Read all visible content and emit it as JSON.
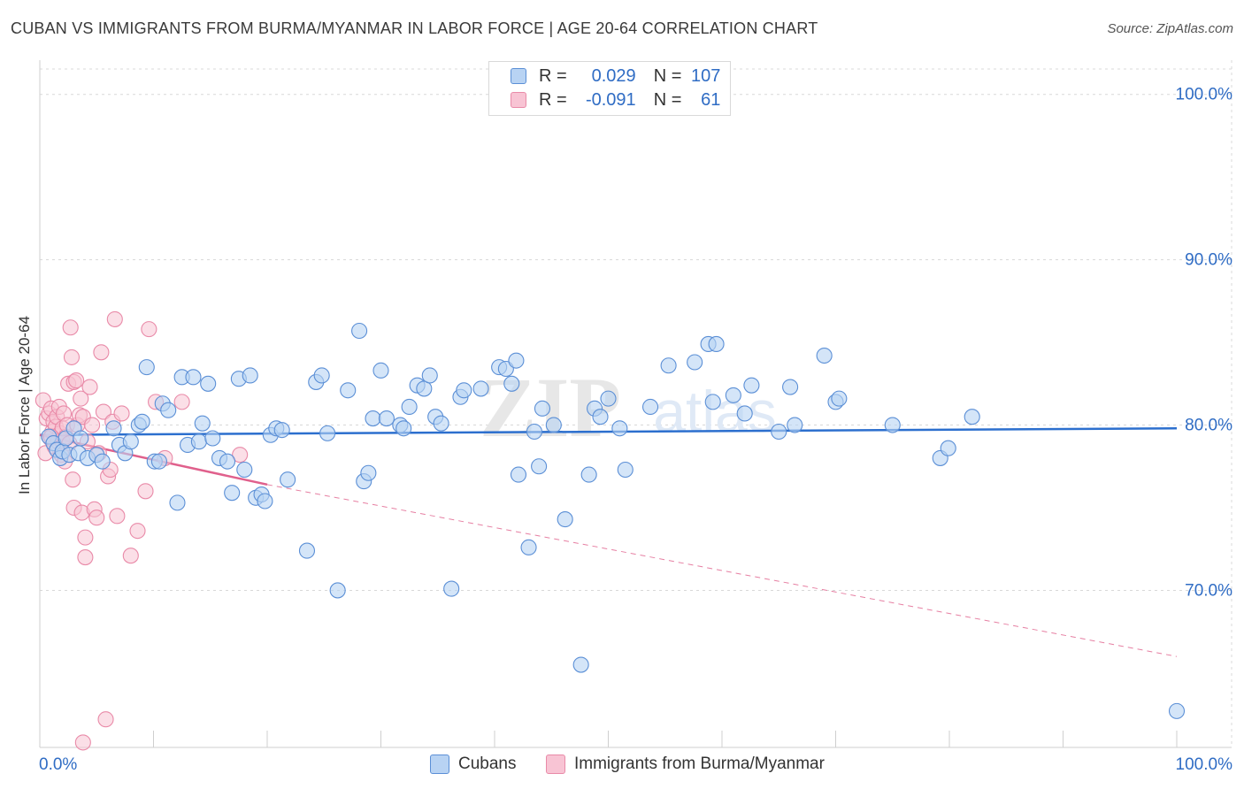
{
  "title": "CUBAN VS IMMIGRANTS FROM BURMA/MYANMAR IN LABOR FORCE | AGE 20-64 CORRELATION CHART",
  "source": "Source: ZipAtlas.com",
  "watermark": {
    "zip": "ZIP",
    "atlas": "atlas"
  },
  "colors": {
    "cubans_fill": "#b8d3f3",
    "cubans_stroke": "#5b8fd6",
    "cubans_line": "#2c6fce",
    "burma_fill": "#f8c4d4",
    "burma_stroke": "#e98aa8",
    "burma_line": "#e0608c",
    "tick_label": "#2f6cc4",
    "grid": "#d8d8d8"
  },
  "legend": {
    "rows": [
      {
        "r_label": "R =",
        "r_value": "0.029",
        "n_label": "N =",
        "n_value": "107"
      },
      {
        "r_label": "R =",
        "r_value": "-0.091",
        "n_label": "N =",
        "n_value": "61"
      }
    ]
  },
  "bottom_legend": {
    "cubans": "Cubans",
    "burma": "Immigrants from Burma/Myanmar"
  },
  "chart_data": {
    "type": "scatter",
    "title": "CUBAN VS IMMIGRANTS FROM BURMA/MYANMAR IN LABOR FORCE | AGE 20-64 CORRELATION CHART",
    "xlabel": "",
    "ylabel": "In Labor Force | Age 20-64",
    "xlim": [
      0,
      100
    ],
    "ylim": [
      60.5,
      102.5
    ],
    "x_tick_labels": [
      "0.0%",
      "100.0%"
    ],
    "y_ticks": [
      {
        "value": 100,
        "label": "100.0%"
      },
      {
        "value": 90,
        "label": "90.0%"
      },
      {
        "value": 80,
        "label": "80.0%"
      },
      {
        "value": 70,
        "label": "70.0%"
      }
    ],
    "grid": true,
    "series": [
      {
        "name": "Cubans",
        "r": 0.029,
        "n": 107,
        "trend": {
          "x": [
            0,
            100
          ],
          "y": [
            79.4,
            79.8
          ],
          "style": "solid"
        },
        "points": [
          [
            0.8,
            79.3
          ],
          [
            1.2,
            78.9
          ],
          [
            1.5,
            78.5
          ],
          [
            1.8,
            78.0
          ],
          [
            2.0,
            78.4
          ],
          [
            2.3,
            79.2
          ],
          [
            2.6,
            78.2
          ],
          [
            3.0,
            79.8
          ],
          [
            3.4,
            78.3
          ],
          [
            3.6,
            79.2
          ],
          [
            4.2,
            78.0
          ],
          [
            5.0,
            78.2
          ],
          [
            5.5,
            77.8
          ],
          [
            6.5,
            79.8
          ],
          [
            7.0,
            78.8
          ],
          [
            7.5,
            78.3
          ],
          [
            8.0,
            79.0
          ],
          [
            8.7,
            80.0
          ],
          [
            9.0,
            80.2
          ],
          [
            9.4,
            83.5
          ],
          [
            10.1,
            77.8
          ],
          [
            10.5,
            77.8
          ],
          [
            10.8,
            81.3
          ],
          [
            11.3,
            80.9
          ],
          [
            12.1,
            75.3
          ],
          [
            12.5,
            82.9
          ],
          [
            13.0,
            78.8
          ],
          [
            13.5,
            82.9
          ],
          [
            14.0,
            79.0
          ],
          [
            14.3,
            80.1
          ],
          [
            14.8,
            82.5
          ],
          [
            15.2,
            79.2
          ],
          [
            15.8,
            78.0
          ],
          [
            16.5,
            77.8
          ],
          [
            16.9,
            75.9
          ],
          [
            17.5,
            82.8
          ],
          [
            18.0,
            77.3
          ],
          [
            18.5,
            83.0
          ],
          [
            19.0,
            75.6
          ],
          [
            19.5,
            75.8
          ],
          [
            19.8,
            75.4
          ],
          [
            20.3,
            79.4
          ],
          [
            20.8,
            79.8
          ],
          [
            21.3,
            79.7
          ],
          [
            21.8,
            76.7
          ],
          [
            23.5,
            72.4
          ],
          [
            24.3,
            82.6
          ],
          [
            24.8,
            83.0
          ],
          [
            25.3,
            79.5
          ],
          [
            26.2,
            70.0
          ],
          [
            27.1,
            82.1
          ],
          [
            28.1,
            85.7
          ],
          [
            28.5,
            76.6
          ],
          [
            28.9,
            77.1
          ],
          [
            29.3,
            80.4
          ],
          [
            30.0,
            83.3
          ],
          [
            30.5,
            80.4
          ],
          [
            31.7,
            80.0
          ],
          [
            32.0,
            79.8
          ],
          [
            32.5,
            81.1
          ],
          [
            33.2,
            82.4
          ],
          [
            33.8,
            82.2
          ],
          [
            34.3,
            83.0
          ],
          [
            34.8,
            80.5
          ],
          [
            35.3,
            80.1
          ],
          [
            36.2,
            70.1
          ],
          [
            37.0,
            81.7
          ],
          [
            37.3,
            82.1
          ],
          [
            38.8,
            82.2
          ],
          [
            40.4,
            83.5
          ],
          [
            41.0,
            83.4
          ],
          [
            41.5,
            82.5
          ],
          [
            41.9,
            83.9
          ],
          [
            42.1,
            77.0
          ],
          [
            43.0,
            72.6
          ],
          [
            43.5,
            79.6
          ],
          [
            43.9,
            77.5
          ],
          [
            44.2,
            81.0
          ],
          [
            45.2,
            80.0
          ],
          [
            46.2,
            74.3
          ],
          [
            47.6,
            65.5
          ],
          [
            48.3,
            77.0
          ],
          [
            48.8,
            81.0
          ],
          [
            49.3,
            80.5
          ],
          [
            50.0,
            81.6
          ],
          [
            51.0,
            79.8
          ],
          [
            51.5,
            77.3
          ],
          [
            53.7,
            81.1
          ],
          [
            55.3,
            83.6
          ],
          [
            57.6,
            83.8
          ],
          [
            58.8,
            84.9
          ],
          [
            59.2,
            81.4
          ],
          [
            59.5,
            84.9
          ],
          [
            61.0,
            81.8
          ],
          [
            62.0,
            80.7
          ],
          [
            62.6,
            82.4
          ],
          [
            65.0,
            79.6
          ],
          [
            66.0,
            82.3
          ],
          [
            66.4,
            80.0
          ],
          [
            69.0,
            84.2
          ],
          [
            70.0,
            81.4
          ],
          [
            70.3,
            81.6
          ],
          [
            75.0,
            80.0
          ],
          [
            79.2,
            78.0
          ],
          [
            79.9,
            78.6
          ],
          [
            82.0,
            80.5
          ],
          [
            100.0,
            62.7
          ]
        ]
      },
      {
        "name": "Immigrants from Burma/Myanmar",
        "r": -0.091,
        "n": 61,
        "trend": {
          "x": [
            0,
            20,
            100
          ],
          "y": [
            79.4,
            76.4,
            66.0
          ],
          "style": "solid-then-dashed"
        },
        "points": [
          [
            0.3,
            81.5
          ],
          [
            0.5,
            78.3
          ],
          [
            0.6,
            80.4
          ],
          [
            0.8,
            80.7
          ],
          [
            0.9,
            79.2
          ],
          [
            1.0,
            81.0
          ],
          [
            1.1,
            79.6
          ],
          [
            1.2,
            80.2
          ],
          [
            1.3,
            78.7
          ],
          [
            1.4,
            79.9
          ],
          [
            1.5,
            80.5
          ],
          [
            1.6,
            79.0
          ],
          [
            1.7,
            81.1
          ],
          [
            1.8,
            79.5
          ],
          [
            1.9,
            78.2
          ],
          [
            2.0,
            79.0
          ],
          [
            2.0,
            79.8
          ],
          [
            2.1,
            80.7
          ],
          [
            2.2,
            77.8
          ],
          [
            2.3,
            79.3
          ],
          [
            2.4,
            80.0
          ],
          [
            2.5,
            82.5
          ],
          [
            2.6,
            78.9
          ],
          [
            2.7,
            85.9
          ],
          [
            2.8,
            84.1
          ],
          [
            2.9,
            76.7
          ],
          [
            3.0,
            82.6
          ],
          [
            3.0,
            75.0
          ],
          [
            3.2,
            82.7
          ],
          [
            3.3,
            80.0
          ],
          [
            3.5,
            80.6
          ],
          [
            3.6,
            81.6
          ],
          [
            3.7,
            74.7
          ],
          [
            3.8,
            80.5
          ],
          [
            4.0,
            73.2
          ],
          [
            4.0,
            72.0
          ],
          [
            4.2,
            79.0
          ],
          [
            4.4,
            82.3
          ],
          [
            4.6,
            80.0
          ],
          [
            4.8,
            74.9
          ],
          [
            5.0,
            74.4
          ],
          [
            5.2,
            78.3
          ],
          [
            5.4,
            84.4
          ],
          [
            5.6,
            80.8
          ],
          [
            5.8,
            62.2
          ],
          [
            6.0,
            76.9
          ],
          [
            6.2,
            77.3
          ],
          [
            6.4,
            80.2
          ],
          [
            6.6,
            86.4
          ],
          [
            6.8,
            74.5
          ],
          [
            7.2,
            80.7
          ],
          [
            8.0,
            72.1
          ],
          [
            8.6,
            73.6
          ],
          [
            9.3,
            76.0
          ],
          [
            9.6,
            85.8
          ],
          [
            10.2,
            81.4
          ],
          [
            11.0,
            78.0
          ],
          [
            12.5,
            81.4
          ],
          [
            17.6,
            78.2
          ],
          [
            3.8,
            60.8
          ],
          [
            1.0,
            79.3
          ]
        ]
      }
    ]
  }
}
